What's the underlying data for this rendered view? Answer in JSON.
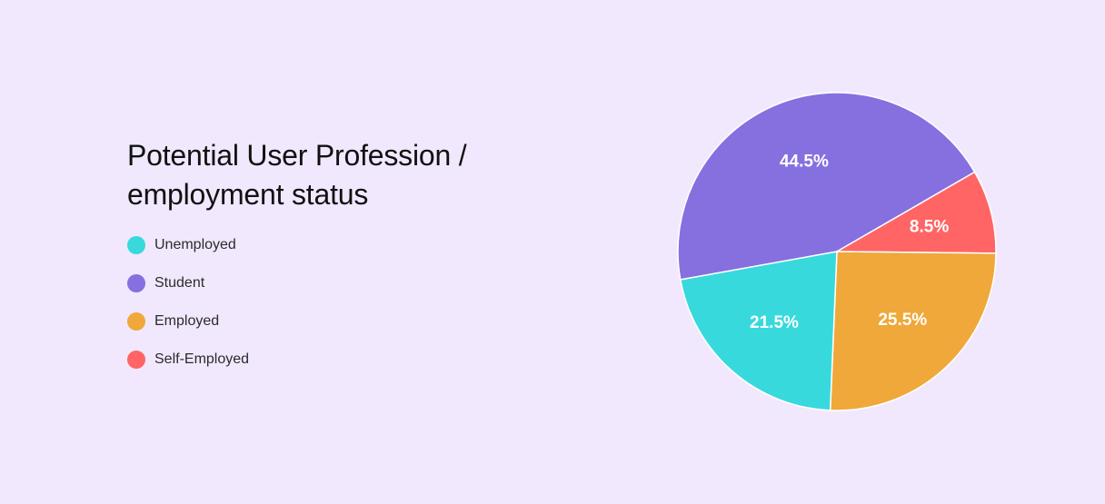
{
  "chart_data": {
    "type": "pie",
    "title": "Potential User Profession / employment status",
    "legend": "left",
    "slices": [
      {
        "name": "Unemployed",
        "value": 21.5,
        "label": "21.5%",
        "color": "#38d9dc"
      },
      {
        "name": "Student",
        "value": 44.5,
        "label": "44.5%",
        "color": "#8670e0"
      },
      {
        "name": "Employed",
        "value": 25.5,
        "label": "25.5%",
        "color": "#f0a83a"
      },
      {
        "name": "Self-Employed",
        "value": 8.5,
        "label": "8.5%",
        "color": "#ff6565"
      }
    ],
    "draw_order": [
      "Student",
      "Self-Employed",
      "Employed",
      "Unemployed"
    ]
  },
  "colors": {
    "background": "#f1e8fe",
    "slice_border": "#ffffff"
  }
}
